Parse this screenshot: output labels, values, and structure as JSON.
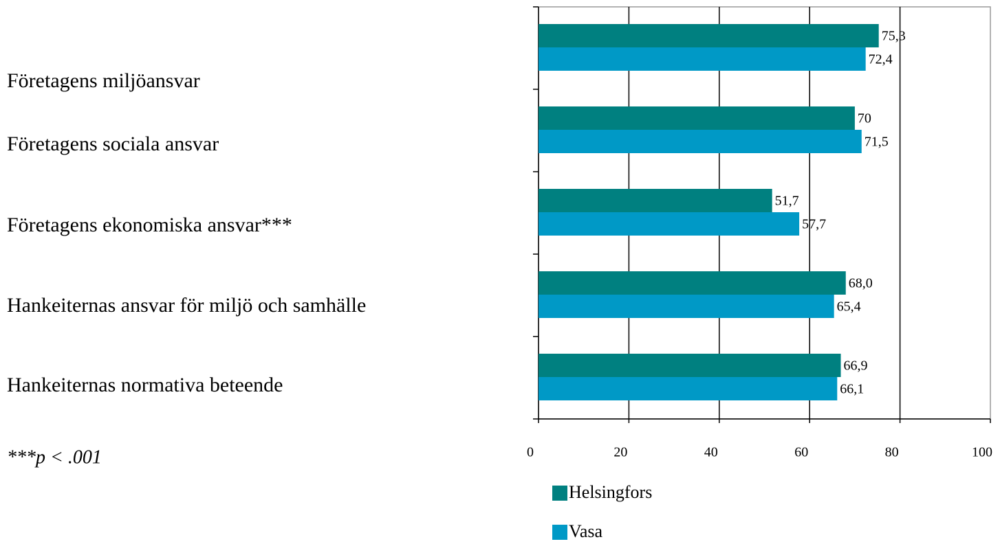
{
  "chart_data": {
    "type": "hbar",
    "categories": [
      "Företagens miljöansvar",
      "Företagens sociala ansvar",
      "Företagens ekonomiska ansvar***",
      "Hankeiternas ansvar för miljö och samhälle",
      "Hankeiternas normativa beteende"
    ],
    "series": [
      {
        "name": "Helsingfors",
        "color": "#008080",
        "values": [
          75.3,
          70,
          51.7,
          68.0,
          66.9
        ],
        "value_labels": [
          "75,3",
          "70",
          "51,7",
          "68,0",
          "66,9"
        ]
      },
      {
        "name": "Vasa",
        "color": "#0099c6",
        "values": [
          72.4,
          71.5,
          57.7,
          65.4,
          66.1
        ],
        "value_labels": [
          "72,4",
          "71,5",
          "57,7",
          "65,4",
          "66,1"
        ]
      }
    ],
    "xlim": [
      0,
      100
    ],
    "xticks": [
      0,
      20,
      40,
      60,
      80,
      100
    ],
    "grid": true,
    "note": "***p < .001"
  }
}
